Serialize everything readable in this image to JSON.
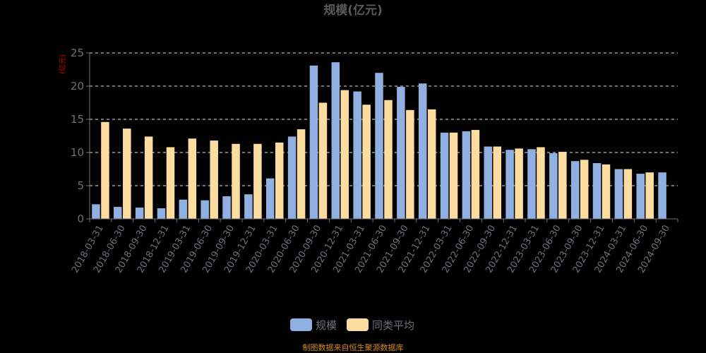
{
  "chart_data": {
    "type": "bar",
    "title": "规模(亿元)",
    "ylabel": "(亿元)",
    "xlabel": "",
    "ylim": [
      0,
      25
    ],
    "yticks": [
      0,
      5,
      10,
      15,
      20,
      25
    ],
    "grid": true,
    "legend_position": "bottom",
    "categories": [
      "2018-03-31",
      "2018-06-30",
      "2018-09-30",
      "2018-12-31",
      "2019-03-31",
      "2019-06-30",
      "2019-09-30",
      "2019-12-31",
      "2020-03-31",
      "2020-06-30",
      "2020-09-30",
      "2020-12-31",
      "2021-03-31",
      "2021-06-30",
      "2021-09-30",
      "2021-12-31",
      "2022-03-31",
      "2022-06-30",
      "2022-09-30",
      "2022-12-31",
      "2023-03-31",
      "2023-06-30",
      "2023-09-30",
      "2023-12-31",
      "2024-03-31",
      "2024-06-30",
      "2024-09-30"
    ],
    "series": [
      {
        "name": "规模",
        "color": "#8fb0e0",
        "values": [
          2.2,
          1.8,
          1.7,
          1.6,
          2.9,
          2.8,
          3.4,
          3.7,
          6.1,
          12.4,
          23.1,
          23.6,
          19.2,
          22.0,
          19.9,
          20.4,
          13.0,
          13.2,
          10.9,
          10.4,
          10.5,
          9.9,
          8.7,
          8.4,
          7.5,
          6.8,
          7.0
        ]
      },
      {
        "name": "同类平均",
        "color": "#fddca0",
        "values": [
          14.6,
          13.6,
          12.4,
          10.8,
          12.1,
          11.8,
          11.3,
          11.3,
          11.5,
          13.5,
          17.5,
          19.4,
          17.2,
          17.9,
          16.4,
          16.5,
          13.0,
          13.4,
          10.9,
          10.6,
          10.8,
          10.1,
          8.9,
          8.2,
          7.5,
          7.0,
          null
        ]
      }
    ]
  },
  "footer": {
    "source": "制图数据来自恒生聚源数据库"
  }
}
